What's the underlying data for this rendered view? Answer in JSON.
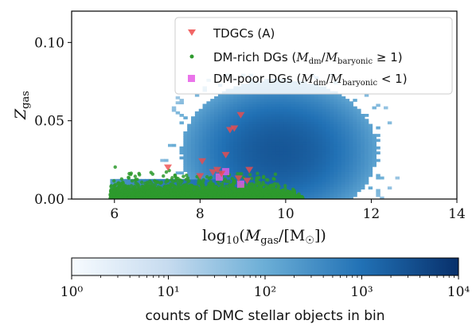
{
  "chart_data": {
    "type": "scatter",
    "title": "",
    "xlabel": "log10(Mgas/[M☉])",
    "ylabel": "Zgas",
    "xlim": [
      5,
      14
    ],
    "ylim": [
      0,
      0.12
    ],
    "x_ticks": [
      "6",
      "8",
      "10",
      "12",
      "14"
    ],
    "y_ticks": [
      "0.00",
      "0.05",
      "0.10"
    ],
    "x_tick_values": [
      6,
      8,
      10,
      12,
      14
    ],
    "y_tick_values": [
      0.0,
      0.05,
      0.1
    ],
    "legend_placement": "top-right",
    "series": [
      {
        "name": "TDGCs (A)",
        "marker": "triangle-down",
        "color": "#ef4b4b",
        "points": [
          [
            7.25,
            0.02
          ],
          [
            8.0,
            0.0145
          ],
          [
            8.05,
            0.024
          ],
          [
            8.3,
            0.017
          ],
          [
            8.4,
            0.0185
          ],
          [
            8.5,
            0.016
          ],
          [
            8.6,
            0.028
          ],
          [
            8.7,
            0.044
          ],
          [
            8.8,
            0.045
          ],
          [
            8.9,
            0.013
          ],
          [
            8.95,
            0.0535
          ],
          [
            9.1,
            0.0115
          ],
          [
            9.15,
            0.0185
          ]
        ]
      },
      {
        "name": "DM-rich DGs (Mdm/Mbaryonic ≥ 1)",
        "marker": "dot",
        "color": "#2e9a2e",
        "description_cloud": {
          "x_range": [
            5.9,
            10.4
          ],
          "z_peak": 0.03
        }
      },
      {
        "name": "DM-poor DGs (Mdm/Mbaryonic < 1)",
        "marker": "square",
        "color": "#e65ce6",
        "points": [
          [
            8.45,
            0.014
          ],
          [
            8.6,
            0.0175
          ],
          [
            8.95,
            0.0095
          ]
        ]
      }
    ],
    "heatmap": {
      "x_center": 9.8,
      "y_center": 0.03,
      "x_spread": 0.9,
      "y_spread": 0.018,
      "x_range": [
        5.9,
        12.6
      ],
      "y_range": [
        0,
        0.08
      ]
    },
    "colorbar": {
      "label": "counts of DMC stellar objects in bin",
      "scale": "log",
      "range": [
        1,
        10000
      ],
      "ticks": [
        "10⁰",
        "10¹",
        "10²",
        "10³",
        "10⁴"
      ],
      "cmap": [
        "#f7fbff",
        "#c6dbef",
        "#6baed6",
        "#2171b5",
        "#08306b"
      ]
    }
  }
}
